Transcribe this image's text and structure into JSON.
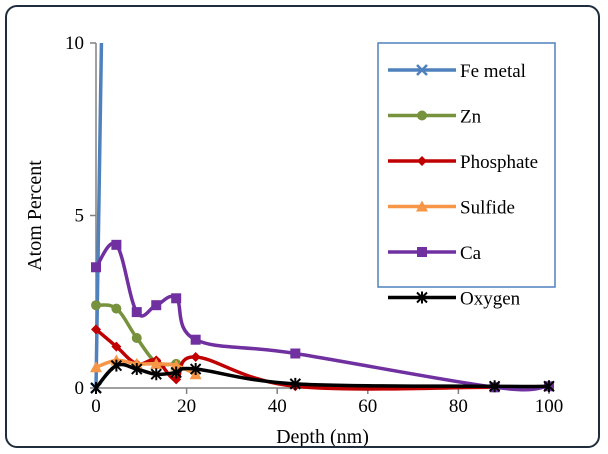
{
  "chart_data": {
    "type": "line",
    "xlabel": "Depth (nm)",
    "ylabel": "Atom Percent",
    "xlim": [
      0,
      100
    ],
    "ylim": [
      0,
      10
    ],
    "xticks": [
      "0",
      "20",
      "40",
      "60",
      "80",
      "100"
    ],
    "yticks": [
      "0",
      "5",
      "10"
    ],
    "grid": false,
    "legend_position": "top-right",
    "series": [
      {
        "name": "Fe metal",
        "color": "#4f81bd",
        "marker": "x-icon",
        "x": [
          0,
          1.2
        ],
        "y": [
          0,
          10
        ]
      },
      {
        "name": "Zn",
        "color": "#76923c",
        "marker": "circle-icon",
        "x": [
          0,
          4.5,
          9,
          13.3,
          17.7
        ],
        "y": [
          2.4,
          2.3,
          1.45,
          0.75,
          0.7
        ]
      },
      {
        "name": "Phosphate",
        "color": "#c00000",
        "marker": "diamond-icon",
        "x": [
          0,
          4.5,
          9,
          13.3,
          17.7,
          22,
          44,
          88,
          100
        ],
        "y": [
          1.7,
          1.2,
          0.7,
          0.8,
          0.25,
          0.9,
          0.05,
          0.02,
          0.03
        ]
      },
      {
        "name": "Sulfide",
        "color": "#f79646",
        "marker": "triangle-icon",
        "x": [
          0,
          4.5,
          9,
          13.3,
          17.7,
          22
        ],
        "y": [
          0.6,
          0.8,
          0.7,
          0.7,
          0.65,
          0.4
        ]
      },
      {
        "name": "Ca",
        "color": "#7030a0",
        "marker": "square-icon",
        "x": [
          0,
          4.5,
          9,
          13.3,
          17.7,
          22,
          44,
          88,
          100
        ],
        "y": [
          3.5,
          4.15,
          2.2,
          2.4,
          2.6,
          1.4,
          1.0,
          0.02,
          0.05
        ]
      },
      {
        "name": "Oxygen",
        "color": "#000000",
        "marker": "asterisk-icon",
        "x": [
          0,
          4.5,
          9,
          13.3,
          17.7,
          22,
          44,
          88,
          100
        ],
        "y": [
          0,
          0.65,
          0.55,
          0.4,
          0.45,
          0.55,
          0.12,
          0.05,
          0.05
        ]
      }
    ]
  }
}
